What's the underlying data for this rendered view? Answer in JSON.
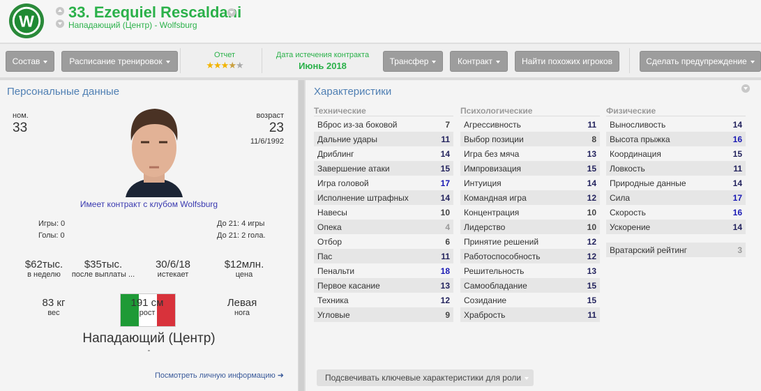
{
  "header": {
    "title": "33. Ezequiel Rescaldani",
    "subtitle": "Нападающий (Центр) - Wolfsburg",
    "club_logo": "W"
  },
  "toolbar": {
    "squad": "Состав",
    "training": "Расписание тренировок",
    "report_label": "Отчет",
    "report_stars": 3.5,
    "contract_label": "Дата истечения контракта",
    "contract_value": "Июнь 2018",
    "transfer": "Трансфер",
    "contract_btn": "Контракт",
    "find_similar": "Найти похожих игроков",
    "warn": "Сделать предупреждение"
  },
  "personal": {
    "title": "Персональные данные",
    "number_label": "ном.",
    "number": "33",
    "age_label": "возраст",
    "age": "23",
    "dob": "11/6/1992",
    "contract_text": "Имеет контракт с клубом Wolfsburg",
    "apps": "Игры: 0",
    "goals": "Голы: 0",
    "u21_apps": "До 21: 4 игры",
    "u21_goals": "До 21: 2 гола.",
    "flag_colors": [
      "#1e9a36",
      "#ffffff",
      "#d8323b"
    ],
    "finance": [
      {
        "value": "$62тыс.",
        "label": "в неделю"
      },
      {
        "value": "$35тыс.",
        "label": "после выплаты ..."
      },
      {
        "value": "30/6/18",
        "label": "истекает"
      },
      {
        "value": "$12млн.",
        "label": "цена"
      }
    ],
    "physical": [
      {
        "value": "83 кг",
        "label": "вес"
      },
      {
        "value": "191 см",
        "label": "рост"
      },
      {
        "value": "Левая",
        "label": "нога"
      }
    ],
    "position": "Нападающий (Центр)",
    "position_sub": "-",
    "more_link": "Посмотреть личную информацию ➜"
  },
  "attributes": {
    "title": "Характеристики",
    "highlight_btn": "Подсвечивать ключевые характеристики для роли",
    "columns": [
      {
        "header": "Технические",
        "rows": [
          [
            "Вброс из-за боковой",
            7
          ],
          [
            "Дальние удары",
            11
          ],
          [
            "Дриблинг",
            14
          ],
          [
            "Завершение атаки",
            15
          ],
          [
            "Игра головой",
            17
          ],
          [
            "Исполнение штрафных",
            14
          ],
          [
            "Навесы",
            10
          ],
          [
            "Опека",
            4
          ],
          [
            "Отбор",
            6
          ],
          [
            "Пас",
            11
          ],
          [
            "Пенальти",
            18
          ],
          [
            "Первое касание",
            13
          ],
          [
            "Техника",
            12
          ],
          [
            "Угловые",
            9
          ]
        ]
      },
      {
        "header": "Психологические",
        "rows": [
          [
            "Агрессивность",
            11
          ],
          [
            "Выбор позиции",
            8
          ],
          [
            "Игра без мяча",
            13
          ],
          [
            "Импровизация",
            15
          ],
          [
            "Интуиция",
            14
          ],
          [
            "Командная игра",
            12
          ],
          [
            "Концентрация",
            10
          ],
          [
            "Лидерство",
            10
          ],
          [
            "Принятие решений",
            12
          ],
          [
            "Работоспособность",
            12
          ],
          [
            "Решительность",
            13
          ],
          [
            "Самообладание",
            15
          ],
          [
            "Созидание",
            15
          ],
          [
            "Храбрость",
            11
          ]
        ]
      },
      {
        "header": "Физические",
        "rows": [
          [
            "Выносливость",
            14
          ],
          [
            "Высота прыжка",
            16
          ],
          [
            "Координация",
            15
          ],
          [
            "Ловкость",
            11
          ],
          [
            "Природные данные",
            14
          ],
          [
            "Сила",
            17
          ],
          [
            "Скорость",
            16
          ],
          [
            "Ускорение",
            14
          ]
        ]
      }
    ],
    "goalkeeper": {
      "label": "Вратарский рейтинг",
      "value": 3
    }
  }
}
